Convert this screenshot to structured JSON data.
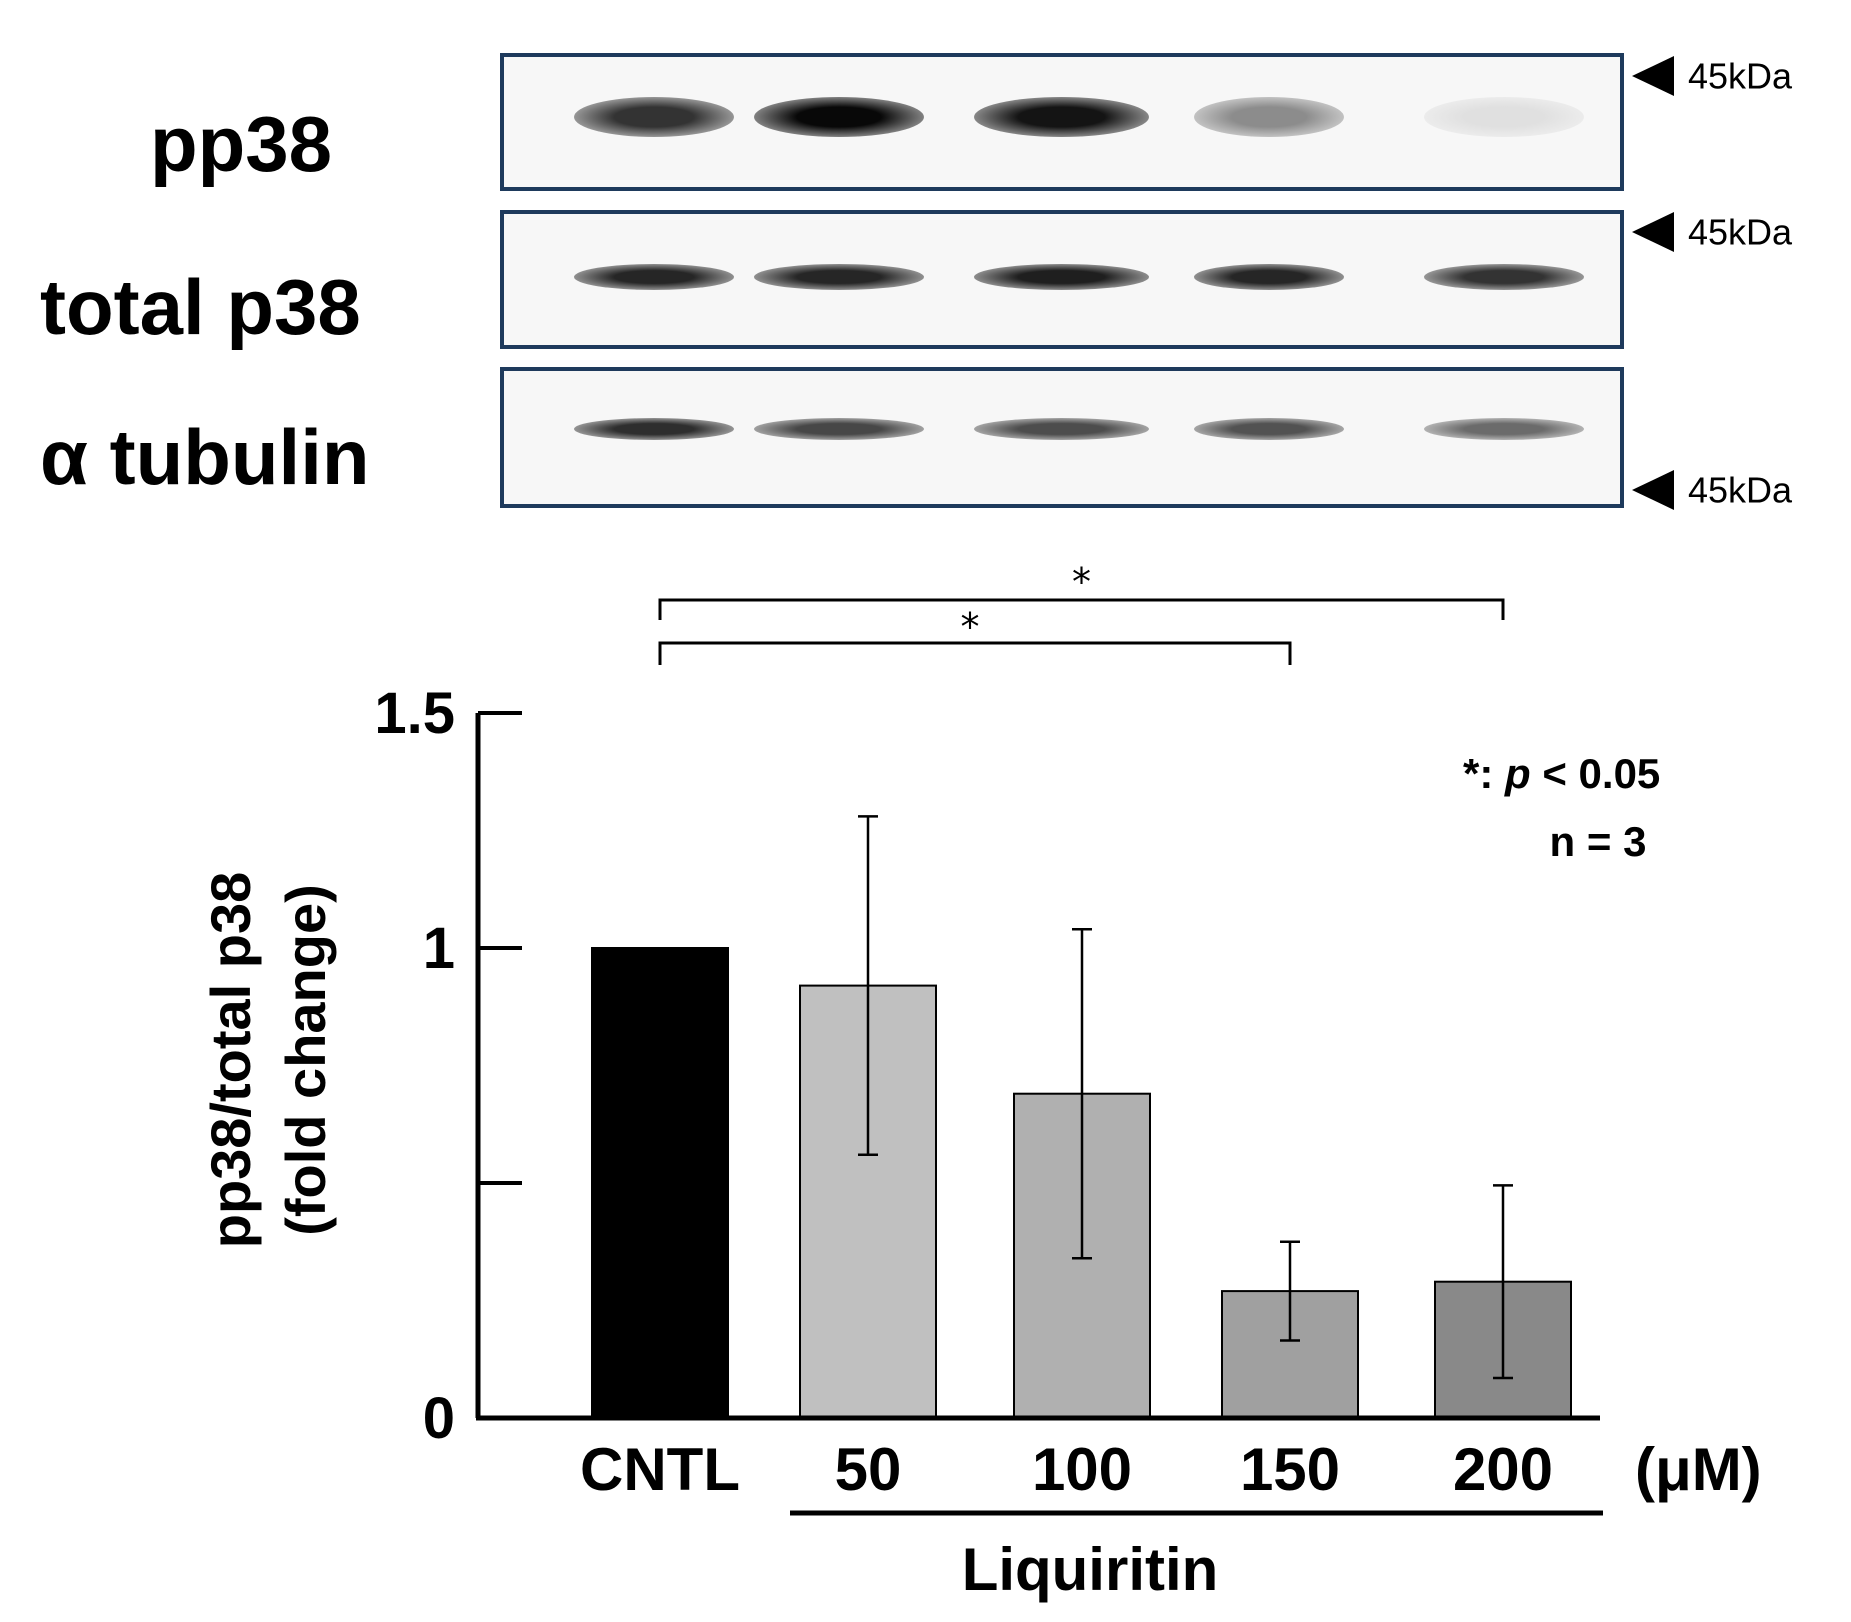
{
  "blot": {
    "rows": [
      {
        "label": "pp38",
        "marker": "45kDa",
        "intensities": [
          0.8,
          0.97,
          0.92,
          0.45,
          0.12
        ]
      },
      {
        "label": "total p38",
        "marker": "45kDa",
        "intensities": [
          0.85,
          0.85,
          0.88,
          0.85,
          0.8
        ]
      },
      {
        "label": "α tubulin",
        "marker": "45kDa",
        "intensities": [
          0.82,
          0.72,
          0.7,
          0.68,
          0.58
        ]
      }
    ]
  },
  "chart_data": {
    "type": "bar",
    "categories": [
      "CNTL",
      "50",
      "100",
      "150",
      "200"
    ],
    "values": [
      1.0,
      0.92,
      0.69,
      0.27,
      0.29
    ],
    "errors": [
      0,
      0.36,
      0.35,
      0.105,
      0.205
    ],
    "colors": [
      "#000000",
      "#c0c0c0",
      "#b0b0b0",
      "#a0a0a0",
      "#898989"
    ],
    "ylabel": "pp38/total p38 (fold change)",
    "ylabel_lines": [
      "pp38/total p38",
      "(fold change)"
    ],
    "yticks": [
      "0",
      "1",
      "1.5"
    ],
    "ylim": [
      0,
      1.5
    ],
    "unit": "(μM)",
    "group_label": "Liquiritin",
    "significance": [
      {
        "from": "CNTL",
        "to": "200",
        "label": "*"
      },
      {
        "from": "CNTL",
        "to": "150",
        "label": "*"
      }
    ],
    "legend": {
      "line1_star": "*",
      "line1_sep": ": ",
      "line1_p": "p",
      "line1_rest": " < 0.05",
      "line2": "n = 3"
    }
  }
}
